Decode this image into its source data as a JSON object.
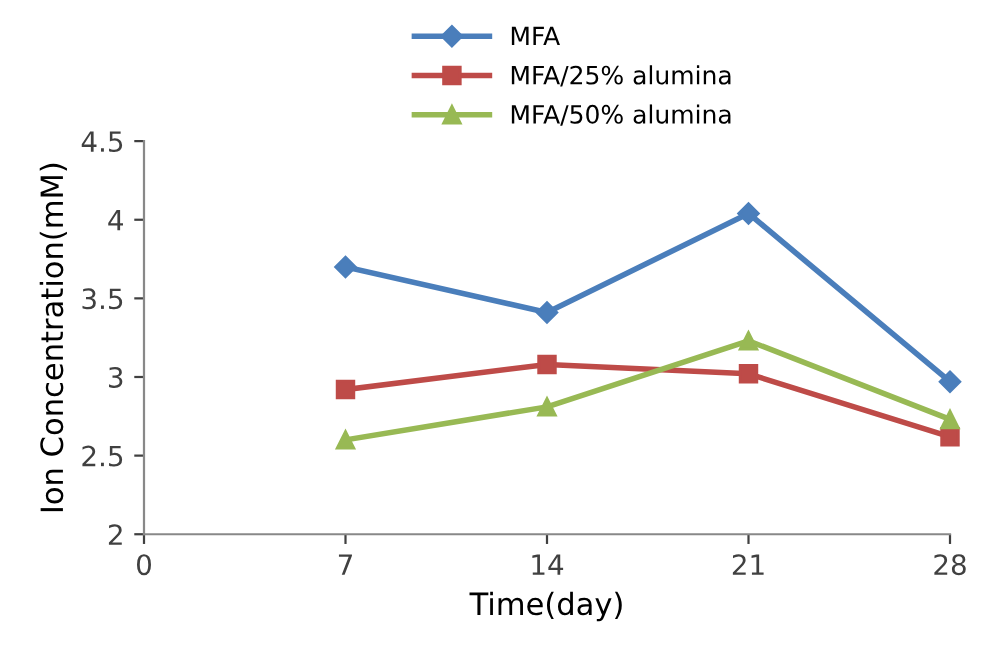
{
  "chart_data": {
    "type": "line",
    "xlabel": "Time(day)",
    "ylabel": "Ion Concentration(mM)",
    "x": [
      7,
      14,
      21,
      28
    ],
    "series": [
      {
        "name": "MFA",
        "color": "#4a7ebb",
        "marker": "diamond",
        "values": [
          3.7,
          3.41,
          4.04,
          2.97
        ]
      },
      {
        "name": "MFA/25% alumina",
        "color": "#be4b48",
        "marker": "square",
        "values": [
          2.92,
          3.08,
          3.02,
          2.62
        ]
      },
      {
        "name": "MFA/50% alumina",
        "color": "#98b954",
        "marker": "triangle",
        "values": [
          2.6,
          2.81,
          3.23,
          2.73
        ]
      }
    ],
    "xlim": [
      0,
      28
    ],
    "xticks": [
      0,
      7,
      14,
      21,
      28
    ],
    "ylim": [
      2,
      4.5
    ],
    "yticks": [
      2,
      2.5,
      3,
      3.5,
      4,
      4.5
    ],
    "grid": false,
    "legend": "top",
    "line_style": "solid"
  }
}
